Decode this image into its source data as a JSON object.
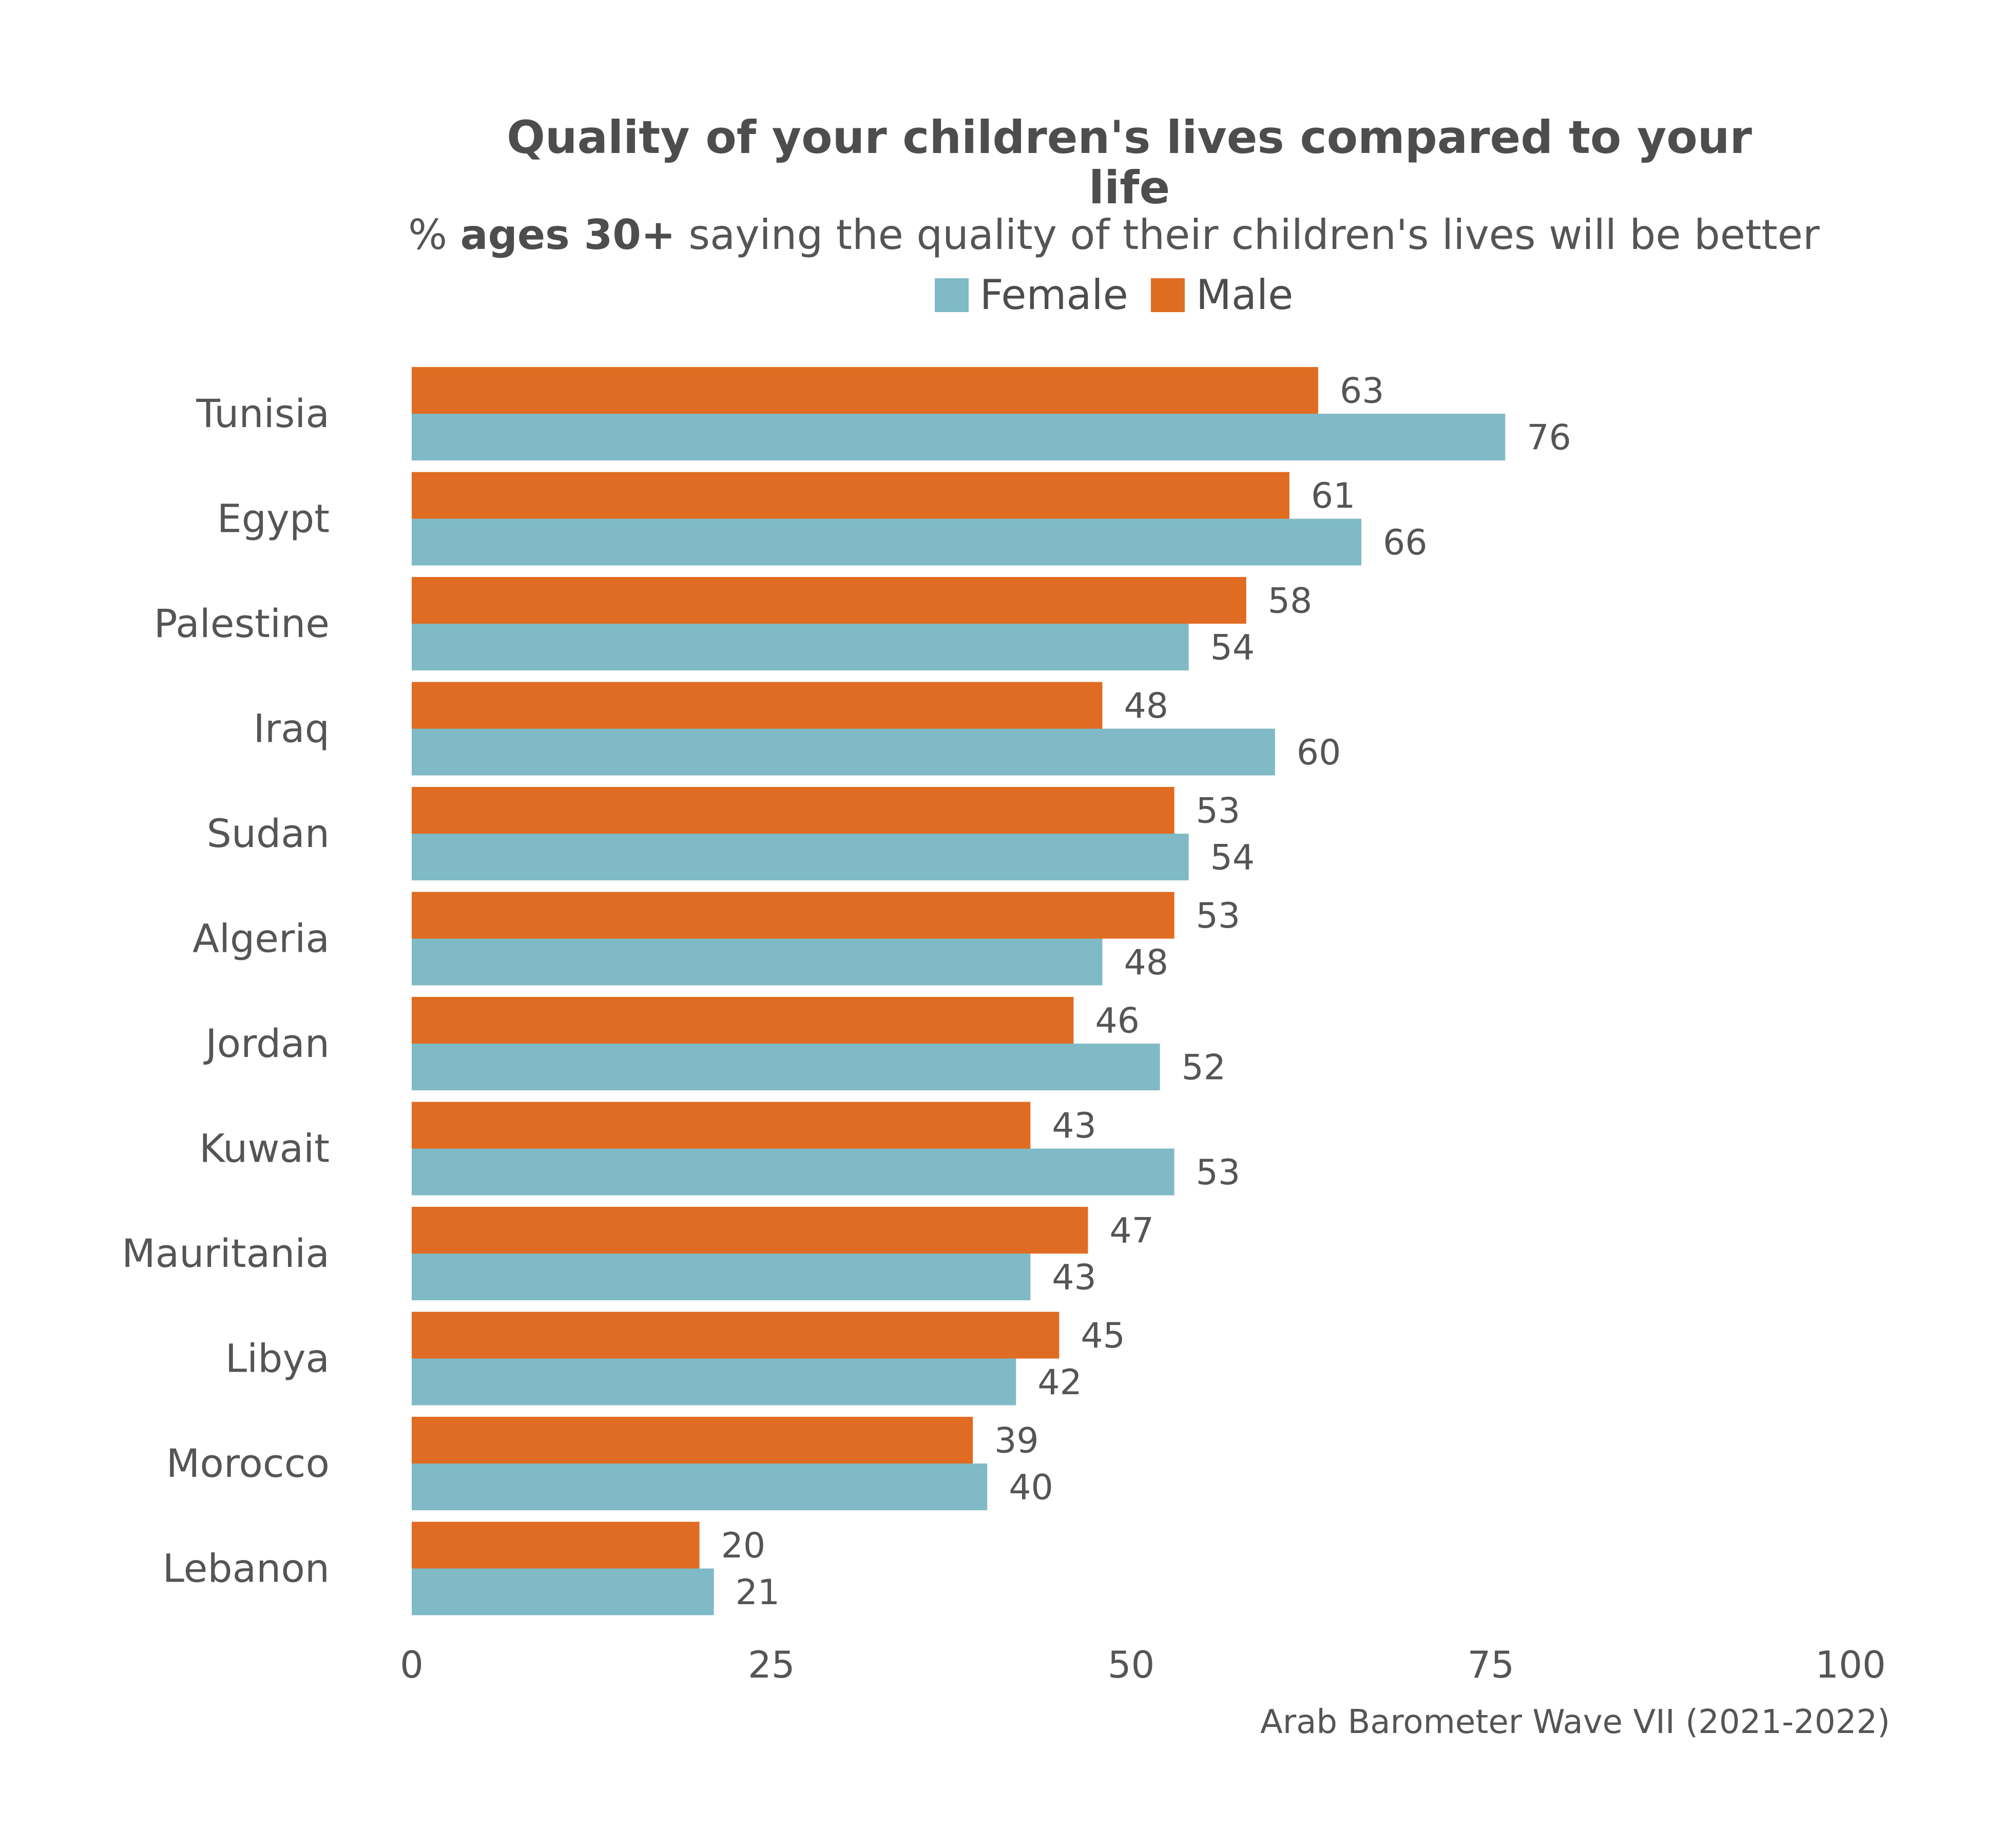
{
  "chart_data": {
    "type": "bar",
    "orientation": "horizontal",
    "title_line1": "Quality of your children's lives compared to your",
    "title_line2": "life",
    "subtitle_prefix": "%",
    "subtitle_bold": "ages 30+",
    "subtitle_rest": "saying the quality of their children's lives will be better",
    "categories": [
      "Tunisia",
      "Egypt",
      "Palestine",
      "Iraq",
      "Sudan",
      "Algeria",
      "Jordan",
      "Kuwait",
      "Mauritania",
      "Libya",
      "Morocco",
      "Lebanon"
    ],
    "series": [
      {
        "name": "Male",
        "color": "#df6c22",
        "values": [
          63,
          61,
          58,
          48,
          53,
          53,
          46,
          43,
          47,
          45,
          39,
          20
        ]
      },
      {
        "name": "Female",
        "color": "#7fbac6",
        "values": [
          76,
          66,
          54,
          60,
          54,
          48,
          52,
          53,
          43,
          42,
          40,
          21
        ]
      }
    ],
    "legend": {
      "position": "top",
      "order": [
        "Female",
        "Male"
      ]
    },
    "xlim": [
      0,
      100
    ],
    "xticks": [
      "0",
      "25",
      "50",
      "75",
      "100"
    ],
    "grid": false,
    "caption": "Arab Barometer Wave VII (2021-2022)"
  }
}
